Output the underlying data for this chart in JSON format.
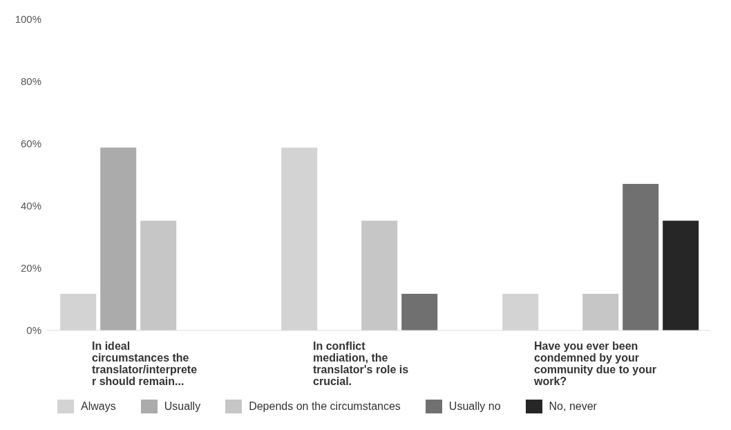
{
  "chart_data": {
    "type": "bar",
    "categories": [
      "In ideal circumstances the translator/interpreter should remain...",
      "In conflict mediation, the translator's role is crucial.",
      "Have you ever been condemned by your community due to your work?"
    ],
    "series": [
      {
        "name": "Always",
        "color": "#d3d3d3",
        "values": [
          11.8,
          58.8,
          11.8
        ]
      },
      {
        "name": "Usually",
        "color": "#ababab",
        "values": [
          58.8,
          0,
          0
        ]
      },
      {
        "name": "Depends on the circumstances",
        "color": "#c6c6c6",
        "values": [
          35.3,
          35.3,
          11.8
        ]
      },
      {
        "name": "Usually no",
        "color": "#707070",
        "values": [
          0,
          11.8,
          47.1
        ]
      },
      {
        "name": "No, never",
        "color": "#262626",
        "values": [
          0,
          0,
          35.3
        ]
      }
    ],
    "ylim": [
      0,
      100
    ],
    "yticks": [
      {
        "value": 0,
        "label": "0%"
      },
      {
        "value": 20,
        "label": "20%"
      },
      {
        "value": 40,
        "label": "40%"
      },
      {
        "value": 60,
        "label": "60%"
      },
      {
        "value": 80,
        "label": "80%"
      },
      {
        "value": 100,
        "label": "100%"
      }
    ],
    "grid": false,
    "legend": "bottom"
  }
}
